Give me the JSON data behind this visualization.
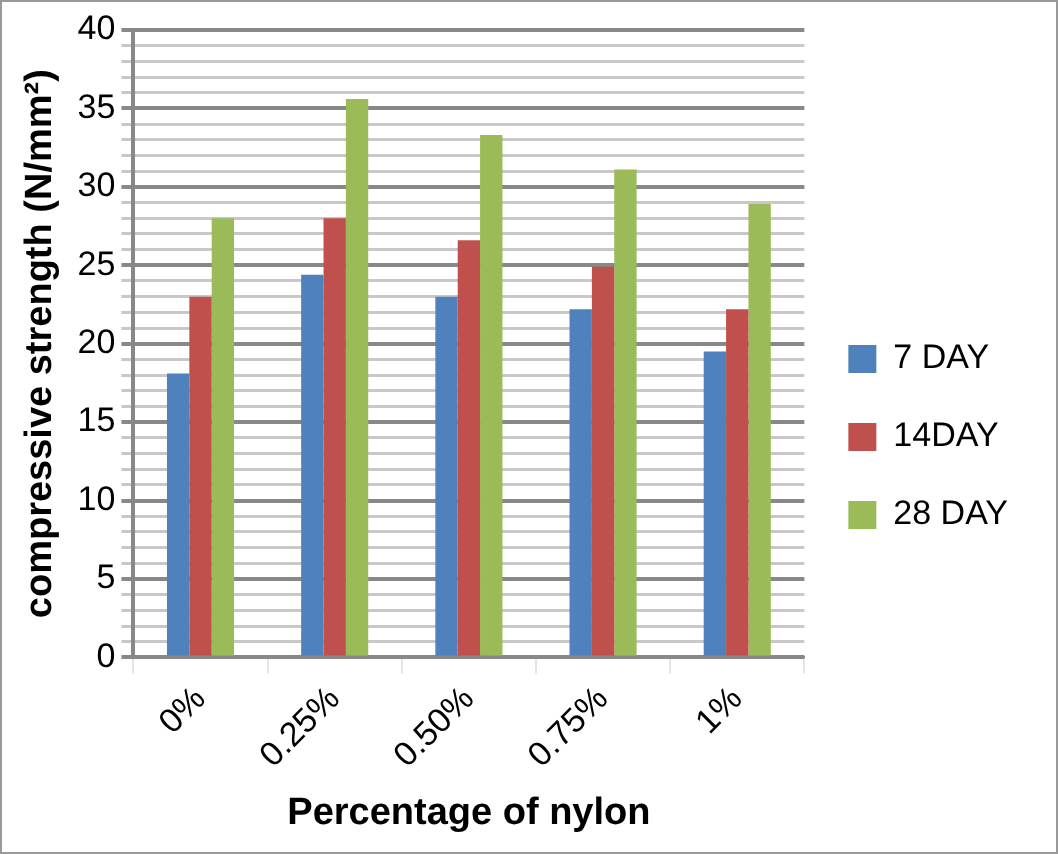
{
  "chart_data": {
    "type": "bar",
    "xlabel": "Percentage of nylon",
    "ylabel": "compressive strength (N/mm²)",
    "categories": [
      "0%",
      "0.25%",
      "0.50%",
      "0.75%",
      "1%"
    ],
    "series": [
      {
        "name": "7 DAY",
        "color": "#4f81bd",
        "values": [
          18.1,
          24.4,
          23.0,
          22.2,
          19.5
        ]
      },
      {
        "name": "14DAY",
        "color": "#c0504d",
        "values": [
          23.0,
          28.0,
          26.6,
          24.9,
          22.2
        ]
      },
      {
        "name": "28 DAY",
        "color": "#9bbb59",
        "values": [
          28.0,
          35.6,
          33.3,
          31.1,
          28.9
        ]
      }
    ],
    "ylim": [
      0,
      40
    ],
    "yticks": [
      0,
      {
        "value": 1,
        "label": null
      },
      {
        "value": 2,
        "label": null
      },
      {
        "value": 3,
        "label": null
      },
      {
        "value": 4,
        "label": null
      },
      5,
      {
        "value": 6,
        "label": null
      },
      {
        "value": 7,
        "label": null
      },
      {
        "value": 8,
        "label": null
      },
      {
        "value": 9,
        "label": null
      },
      10,
      {
        "value": 11,
        "label": null
      },
      {
        "value": 12,
        "label": null
      },
      {
        "value": 13,
        "label": null
      },
      {
        "value": 14,
        "label": null
      },
      15,
      {
        "value": 16,
        "label": null
      },
      {
        "value": 17,
        "label": null
      },
      {
        "value": 18,
        "label": null
      },
      {
        "value": 19,
        "label": null
      },
      20,
      {
        "value": 21,
        "label": null
      },
      {
        "value": 22,
        "label": null
      },
      {
        "value": 23,
        "label": null
      },
      {
        "value": 24,
        "label": null
      },
      25,
      {
        "value": 26,
        "label": null
      },
      {
        "value": 27,
        "label": null
      },
      {
        "value": 28,
        "label": null
      },
      {
        "value": 29,
        "label": null
      },
      30,
      {
        "value": 31,
        "label": null
      },
      {
        "value": 32,
        "label": null
      },
      {
        "value": 33,
        "label": null
      },
      {
        "value": 34,
        "label": null
      },
      35,
      {
        "value": 36,
        "label": null
      },
      {
        "value": 37,
        "label": null
      },
      {
        "value": 38,
        "label": null
      },
      {
        "value": 39,
        "label": null
      },
      40
    ],
    "grid": true,
    "legend": "right"
  }
}
